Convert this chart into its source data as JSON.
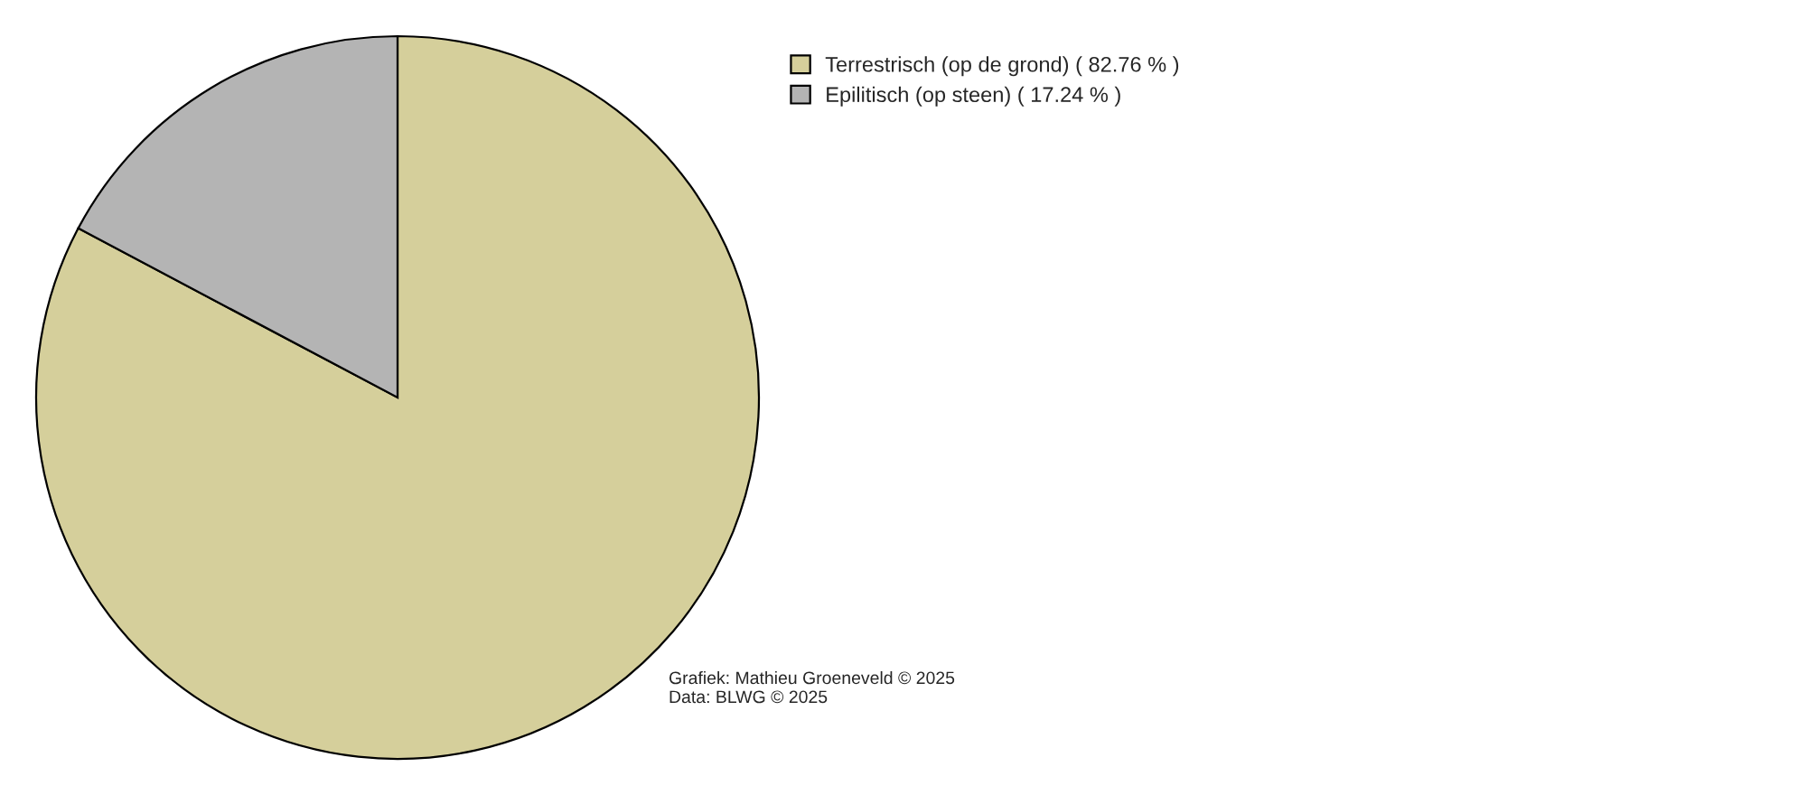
{
  "chart_data": {
    "type": "pie",
    "categories": [
      "Terrestrisch (op de grond) ( 82.76 % )",
      "Epilitisch (op steen) ( 17.24 % )"
    ],
    "values": [
      82.76,
      17.24
    ],
    "colors": [
      "#d5cf9b",
      "#b4b4b4"
    ],
    "legend": "top right",
    "annotations": [
      "Grafiek: Mathieu Groeneveld © 2025",
      "Data: BLWG © 2025"
    ]
  }
}
